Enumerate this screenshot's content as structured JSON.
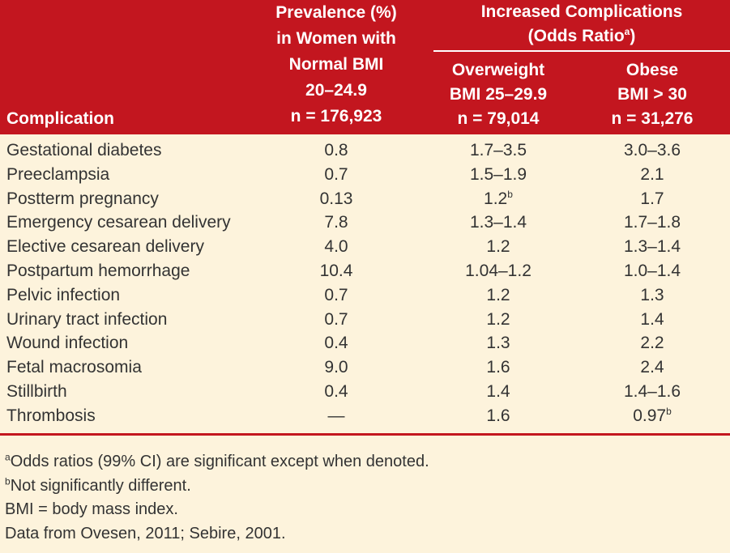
{
  "header": {
    "complication": "Complication",
    "prevalence": [
      "Prevalence (%)",
      "in Women with",
      "Normal BMI",
      "20–24.9",
      "n = 176,923"
    ],
    "increased": [
      "Increased Complications",
      "(Odds Ratio",
      "a",
      ")"
    ],
    "overweight": [
      "Overweight",
      "BMI 25–29.9",
      "n = 79,014"
    ],
    "obese": [
      "Obese",
      "BMI > 30",
      "n = 31,276"
    ]
  },
  "rows": [
    {
      "name": "Gestational diabetes",
      "prev": "0.8",
      "ow": "1.7–3.5",
      "ow_sup": "",
      "ob": "3.0–3.6",
      "ob_sup": ""
    },
    {
      "name": "Preeclampsia",
      "prev": "0.7",
      "ow": "1.5–1.9",
      "ow_sup": "",
      "ob": "2.1",
      "ob_sup": ""
    },
    {
      "name": "Postterm pregnancy",
      "prev": "0.13",
      "ow": "1.2",
      "ow_sup": "b",
      "ob": "1.7",
      "ob_sup": ""
    },
    {
      "name": "Emergency cesarean delivery",
      "prev": "7.8",
      "ow": "1.3–1.4",
      "ow_sup": "",
      "ob": "1.7–1.8",
      "ob_sup": ""
    },
    {
      "name": "Elective cesarean delivery",
      "prev": "4.0",
      "ow": "1.2",
      "ow_sup": "",
      "ob": "1.3–1.4",
      "ob_sup": ""
    },
    {
      "name": "Postpartum hemorrhage",
      "prev": "10.4",
      "ow": "1.04–1.2",
      "ow_sup": "",
      "ob": "1.0–1.4",
      "ob_sup": ""
    },
    {
      "name": "Pelvic infection",
      "prev": "0.7",
      "ow": "1.2",
      "ow_sup": "",
      "ob": "1.3",
      "ob_sup": ""
    },
    {
      "name": "Urinary tract infection",
      "prev": "0.7",
      "ow": "1.2",
      "ow_sup": "",
      "ob": "1.4",
      "ob_sup": ""
    },
    {
      "name": "Wound infection",
      "prev": "0.4",
      "ow": "1.3",
      "ow_sup": "",
      "ob": "2.2",
      "ob_sup": ""
    },
    {
      "name": "Fetal macrosomia",
      "prev": "9.0",
      "ow": "1.6",
      "ow_sup": "",
      "ob": "2.4",
      "ob_sup": ""
    },
    {
      "name": "Stillbirth",
      "prev": "0.4",
      "ow": "1.4",
      "ow_sup": "",
      "ob": "1.4–1.6",
      "ob_sup": ""
    },
    {
      "name": "Thrombosis",
      "prev": "—",
      "ow": "1.6",
      "ow_sup": "",
      "ob": "0.97",
      "ob_sup": "b"
    }
  ],
  "notes": [
    {
      "sup": "a",
      "text": "Odds ratios (99% CI) are significant except when denoted."
    },
    {
      "sup": "b",
      "text": "Not significantly different."
    },
    {
      "sup": "",
      "text": "BMI = body mass index."
    },
    {
      "sup": "",
      "text": "Data from Ovesen, 2011; Sebire, 2001."
    }
  ]
}
